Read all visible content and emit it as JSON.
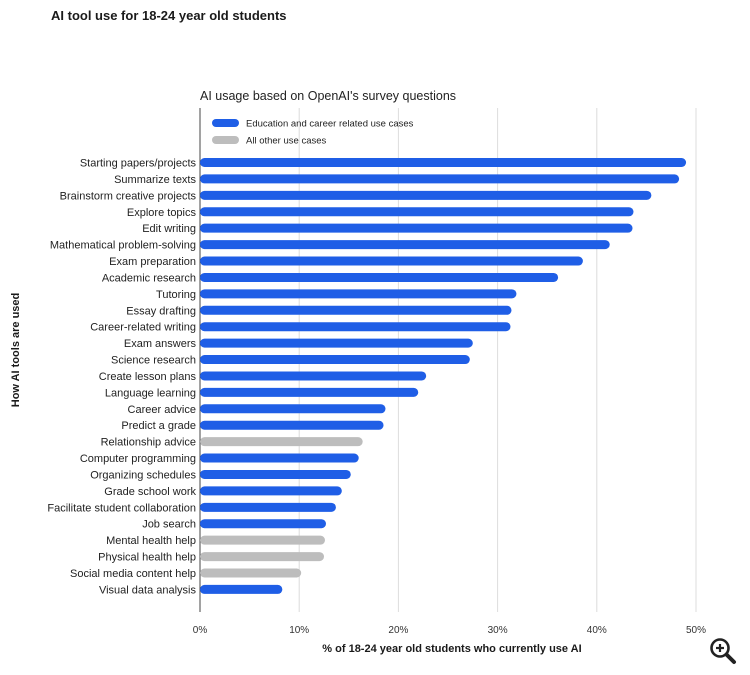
{
  "page": {
    "title": "AI tool use for 18-24 year old students"
  },
  "chart_data": {
    "type": "bar",
    "orientation": "horizontal",
    "subtitle": "AI usage based on OpenAI's survey questions",
    "xlabel": "% of 18-24 year old students who currently use AI",
    "ylabel": "How AI tools are used",
    "xlim": [
      0,
      50
    ],
    "xticks": [
      "0%",
      "10%",
      "20%",
      "30%",
      "40%",
      "50%"
    ],
    "grid": true,
    "legend_position": "top-left",
    "colors": {
      "education": "#1f5ee6",
      "other": "#bdbdbd"
    },
    "series": [
      {
        "key": "education",
        "name": "Education and career related use cases"
      },
      {
        "key": "other",
        "name": "All other use cases"
      }
    ],
    "bars": [
      {
        "label": "Starting papers/projects",
        "value": 49,
        "group": "education"
      },
      {
        "label": "Summarize texts",
        "value": 48.3,
        "group": "education"
      },
      {
        "label": "Brainstorm creative projects",
        "value": 45.5,
        "group": "education"
      },
      {
        "label": "Explore topics",
        "value": 43.7,
        "group": "education"
      },
      {
        "label": "Edit writing",
        "value": 43.6,
        "group": "education"
      },
      {
        "label": "Mathematical problem-solving",
        "value": 41.3,
        "group": "education"
      },
      {
        "label": "Exam preparation",
        "value": 38.6,
        "group": "education"
      },
      {
        "label": "Academic research",
        "value": 36.1,
        "group": "education"
      },
      {
        "label": "Tutoring",
        "value": 31.9,
        "group": "education"
      },
      {
        "label": "Essay drafting",
        "value": 31.4,
        "group": "education"
      },
      {
        "label": "Career-related writing",
        "value": 31.3,
        "group": "education"
      },
      {
        "label": "Exam answers",
        "value": 27.5,
        "group": "education"
      },
      {
        "label": "Science research",
        "value": 27.2,
        "group": "education"
      },
      {
        "label": "Create lesson plans",
        "value": 22.8,
        "group": "education"
      },
      {
        "label": "Language learning",
        "value": 22,
        "group": "education"
      },
      {
        "label": "Career advice",
        "value": 18.7,
        "group": "education"
      },
      {
        "label": "Predict a grade",
        "value": 18.5,
        "group": "education"
      },
      {
        "label": "Relationship advice",
        "value": 16.4,
        "group": "other"
      },
      {
        "label": "Computer programming",
        "value": 16,
        "group": "education"
      },
      {
        "label": "Organizing schedules",
        "value": 15.2,
        "group": "education"
      },
      {
        "label": "Grade school work",
        "value": 14.3,
        "group": "education"
      },
      {
        "label": "Facilitate student collaboration",
        "value": 13.7,
        "group": "education"
      },
      {
        "label": "Job search",
        "value": 12.7,
        "group": "education"
      },
      {
        "label": "Mental health help",
        "value": 12.6,
        "group": "other"
      },
      {
        "label": "Physical health help",
        "value": 12.5,
        "group": "other"
      },
      {
        "label": "Social media content help",
        "value": 10.2,
        "group": "other"
      },
      {
        "label": "Visual data analysis",
        "value": 8.3,
        "group": "education"
      }
    ]
  },
  "controls": {
    "zoom_icon": "zoom-in-magnifier-icon"
  }
}
